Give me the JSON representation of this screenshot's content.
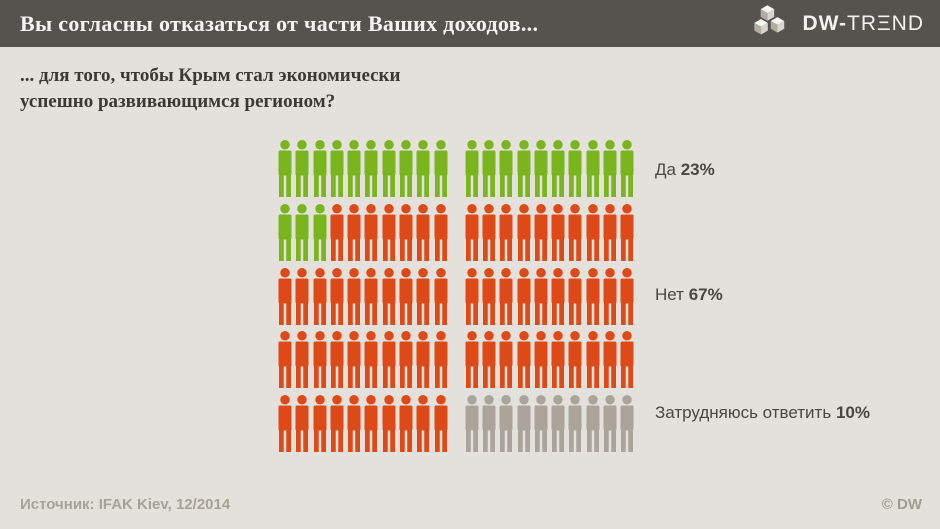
{
  "header": {
    "title": "Вы согласны отказаться от части Ваших доходов...",
    "logo": {
      "bold": "DW-",
      "t1": "TR",
      "e": "Ξ",
      "t2": "ND"
    }
  },
  "subtitle": {
    "line1": "... для того, чтобы Крым стал экономически",
    "line2": "успешно развивающимся регионом?"
  },
  "chart_data": {
    "type": "pictogram",
    "title": "Вы согласны отказаться от части Ваших доходов... для того, чтобы Крым стал экономически успешно развивающимся регионом?",
    "unit": "1 person icon = 1% of respondents",
    "total_icons": 100,
    "rows": 5,
    "icons_per_row": 20,
    "group_gap_after_icon": 10,
    "categories": [
      "Да",
      "Нет",
      "Затрудняюсь ответить"
    ],
    "values": [
      23,
      67,
      10
    ],
    "colors": [
      "#7ab51e",
      "#de4a17",
      "#aba49b"
    ],
    "legend": [
      {
        "label": "Да",
        "value": "23%"
      },
      {
        "label": "Нет",
        "value": "67%"
      },
      {
        "label": "Затрудняюсь ответить",
        "value": "10%"
      }
    ],
    "legend_position": "right"
  },
  "footer": {
    "source": "Источник: IFAK Kiev, 12/2014",
    "copyright": "© DW"
  },
  "palette": {
    "background": "#e4e1dc",
    "titlebar": "#56534e",
    "title_text": "#f5f4f1",
    "subtitle_text": "#3c3832",
    "legend_text": "#4a4742",
    "footer_text": "#a8a198"
  }
}
